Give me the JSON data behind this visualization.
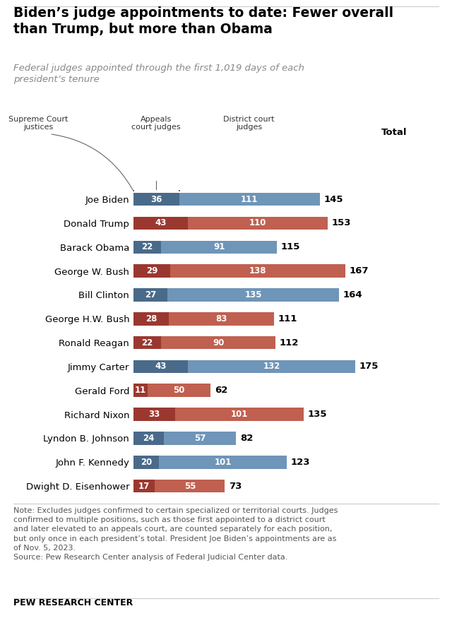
{
  "title": "Biden’s judge appointments to date: Fewer overall\nthan Trump, but more than Obama",
  "subtitle": "Federal judges appointed through the first 1,019 days of each\npresident’s tenure",
  "presidents": [
    "Joe Biden",
    "Donald Trump",
    "Barack Obama",
    "George W. Bush",
    "Bill Clinton",
    "George H.W. Bush",
    "Ronald Reagan",
    "Jimmy Carter",
    "Gerald Ford",
    "Richard Nixon",
    "Lyndon B. Johnson",
    "John F. Kennedy",
    "Dwight D. Eisenhower"
  ],
  "appeals": [
    36,
    43,
    22,
    29,
    27,
    28,
    22,
    43,
    11,
    33,
    24,
    20,
    17
  ],
  "district": [
    111,
    110,
    91,
    138,
    135,
    83,
    90,
    132,
    50,
    101,
    57,
    101,
    55
  ],
  "totals": [
    145,
    153,
    115,
    167,
    164,
    111,
    112,
    175,
    62,
    135,
    82,
    123,
    73
  ],
  "party": [
    "D",
    "R",
    "D",
    "R",
    "D",
    "R",
    "R",
    "D",
    "R",
    "R",
    "D",
    "D",
    "R"
  ],
  "color_dem_light": "#6f95b8",
  "color_dem_dark": "#4a6a8a",
  "color_rep_light": "#c06050",
  "color_rep_dark": "#9a3830",
  "note": "Note: Excludes judges confirmed to certain specialized or territorial courts. Judges confirmed to multiple positions, such as those first appointed to a district court and later elevated to an appeals court, are counted separately for each position, but only once in each president’s total. President Joe Biden’s appointments are as of Nov. 5, 2023.",
  "source": "Source: Pew Research Center analysis of Federal Judicial Center data.",
  "branding": "PEW RESEARCH CENTER",
  "col_label_sc": "Supreme Court\njustices",
  "col_label_appeals": "Appeals\ncourt judges",
  "col_label_district": "District court\njudges",
  "col_label_total": "Total",
  "bar_height": 0.55,
  "xlim_max": 210
}
